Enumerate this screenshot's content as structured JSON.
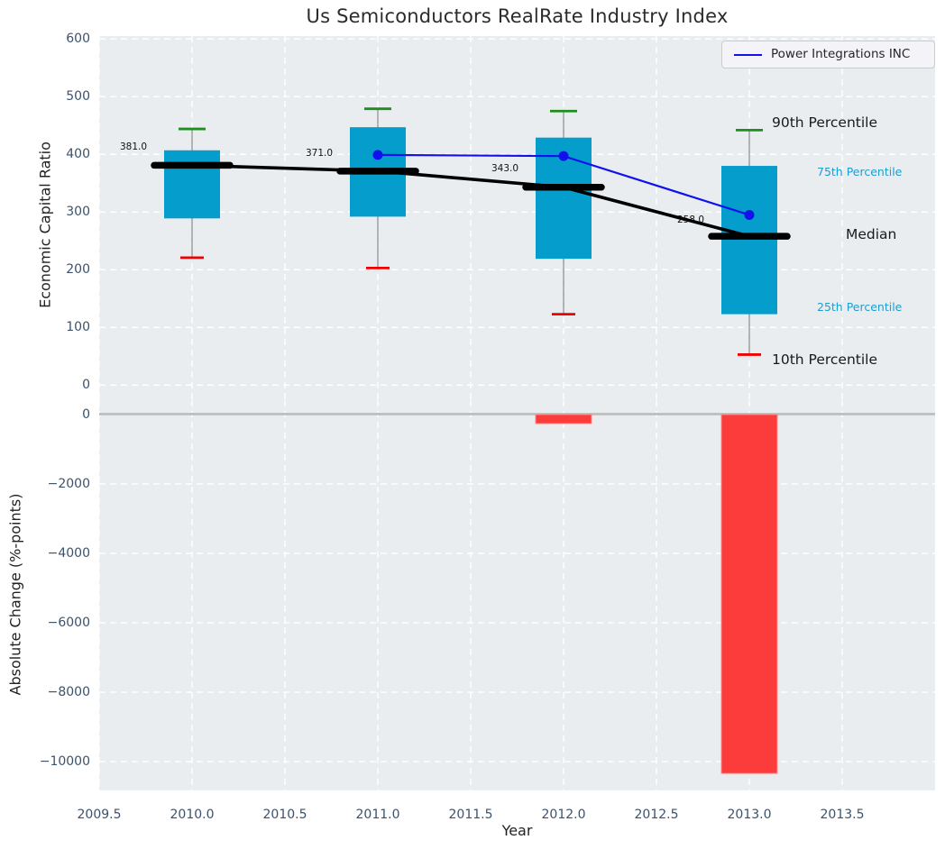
{
  "title": "Us Semiconductors RealRate Industry Index",
  "legend": {
    "label": "Power Integrations INC"
  },
  "axes": {
    "x": {
      "label": "Year",
      "tick_values": [
        2009.5,
        2010.0,
        2010.5,
        2011.0,
        2011.5,
        2012.0,
        2012.5,
        2013.0,
        2013.5
      ],
      "tick_labels": [
        "2009.5",
        "2010.0",
        "2010.5",
        "2011.0",
        "2011.5",
        "2012.0",
        "2012.5",
        "2013.0",
        "2013.5"
      ],
      "lim": [
        2009.5,
        2014.0
      ]
    },
    "top": {
      "label": "Economic Capital Ratio",
      "tick_values": [
        600,
        500,
        400,
        300,
        200,
        100,
        0
      ],
      "tick_labels": [
        "600",
        "500",
        "400",
        "300",
        "200",
        "100",
        "0"
      ],
      "lim": [
        -26,
        605
      ]
    },
    "bottom": {
      "label": "Absolute Change (%-points)",
      "tick_values": [
        0,
        -2000,
        -4000,
        -6000,
        -8000,
        -10000
      ],
      "tick_labels": [
        "0",
        "−2000",
        "−4000",
        "−6000",
        "−8000",
        "−10000"
      ],
      "lim": [
        -10830,
        415
      ]
    }
  },
  "percentile_labels": {
    "p90": "90th Percentile",
    "p75": "75th Percentile",
    "median": "Median",
    "p25": "25th Percentile",
    "p10": "10th Percentile"
  },
  "colors": {
    "panel_bg": "#e9edf0",
    "grid": "#ffffff",
    "box_fill": "#059dcb",
    "whisker": "#808080",
    "p90_cap": "#1e8f1e",
    "p10_cap": "#f00000",
    "median_line": "#000000",
    "company_line": "#1111ee",
    "bar_fill": "#fc3b3b",
    "bar_edge": "#ff8787",
    "zero_line": "#bbbbbb",
    "tick_label": "#3c526b",
    "percentile_cyan": "#1b9fd0"
  },
  "chart_data": [
    {
      "type": "box",
      "title": "Us Semiconductors RealRate Industry Index",
      "xlabel": "Year",
      "ylabel": "Economic Capital Ratio",
      "ylim": [
        -26,
        605
      ],
      "grid": true,
      "legend_position": "upper right",
      "categories": [
        2010,
        2011,
        2012,
        2013
      ],
      "boxes": [
        {
          "year": 2010,
          "p10": 221,
          "p25": 289,
          "median": 381,
          "p75": 407,
          "p90": 444,
          "median_label": "381.0"
        },
        {
          "year": 2011,
          "p10": 203,
          "p25": 292,
          "median": 371,
          "p75": 447,
          "p90": 479,
          "median_label": "371.0"
        },
        {
          "year": 2012,
          "p10": 123,
          "p25": 219,
          "median": 343,
          "p75": 429,
          "p90": 475,
          "median_label": "343.0"
        },
        {
          "year": 2013,
          "p10": 53,
          "p25": 123,
          "median": 258,
          "p75": 380,
          "p90": 442,
          "median_label": "258.0"
        }
      ],
      "series": [
        {
          "name": "Power Integrations INC",
          "x": [
            2011,
            2012,
            2013
          ],
          "y": [
            399,
            397,
            295
          ]
        }
      ]
    },
    {
      "type": "bar",
      "xlabel": "Year",
      "ylabel": "Absolute Change (%-points)",
      "ylim": [
        -10830,
        415
      ],
      "grid": true,
      "x": [
        2012,
        2013
      ],
      "values": [
        -260,
        -10340
      ],
      "bar_width_years": 0.3
    }
  ]
}
